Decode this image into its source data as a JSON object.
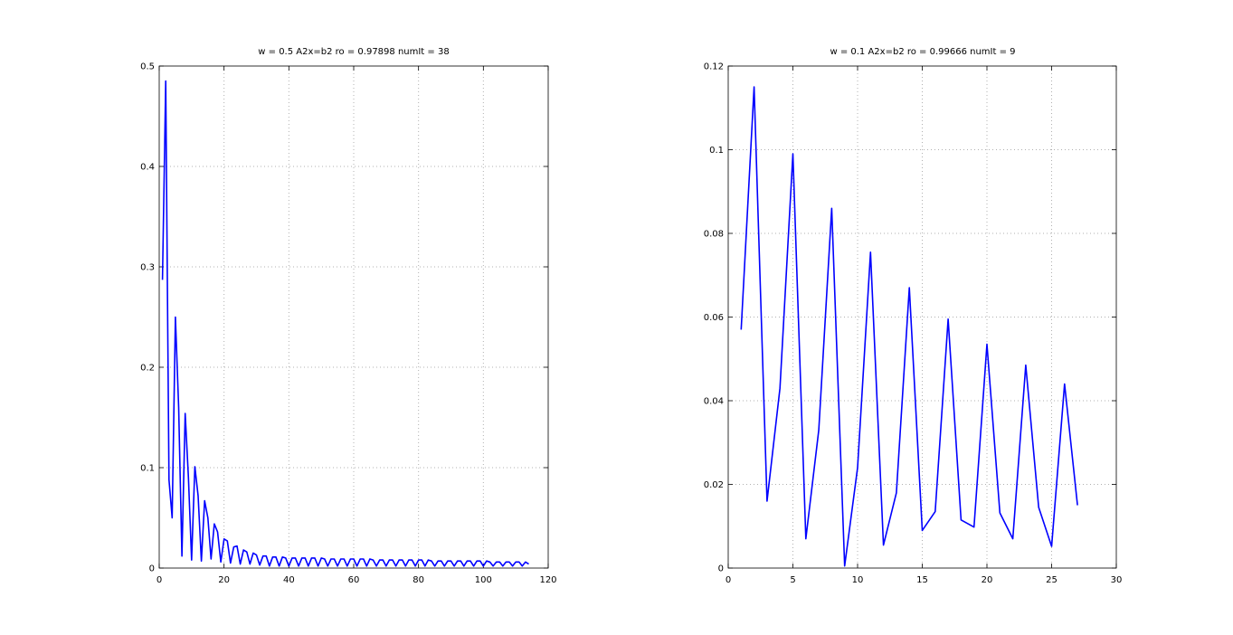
{
  "chart_data": [
    {
      "type": "line",
      "title": "w = 0.5   A2x=b2   ro = 0.97898   numIt = 38",
      "xlabel": "",
      "ylabel": "",
      "xlim": [
        0,
        120
      ],
      "ylim": [
        0,
        0.5
      ],
      "xticks": [
        0,
        20,
        40,
        60,
        80,
        100,
        120
      ],
      "yticks": [
        0,
        0.1,
        0.2,
        0.3,
        0.4,
        0.5
      ],
      "xtick_labels": [
        "0",
        "20",
        "40",
        "60",
        "80",
        "100",
        "120"
      ],
      "ytick_labels": [
        "0",
        "0.1",
        "0.2",
        "0.3",
        "0.4",
        "0.5"
      ],
      "grid": true,
      "line_color": "#0000ff",
      "x": [
        1,
        2,
        3,
        4,
        5,
        6,
        7,
        8,
        9,
        10,
        11,
        12,
        13,
        14,
        15,
        16,
        17,
        18,
        19,
        20,
        21,
        22,
        23,
        24,
        25,
        26,
        27,
        28,
        29,
        30,
        31,
        32,
        33,
        34,
        35,
        36,
        37,
        38,
        39,
        40,
        41,
        42,
        43,
        44,
        45,
        46,
        47,
        48,
        49,
        50,
        51,
        52,
        53,
        54,
        55,
        56,
        57,
        58,
        59,
        60,
        61,
        62,
        63,
        64,
        65,
        66,
        67,
        68,
        69,
        70,
        71,
        72,
        73,
        74,
        75,
        76,
        77,
        78,
        79,
        80,
        81,
        82,
        83,
        84,
        85,
        86,
        87,
        88,
        89,
        90,
        91,
        92,
        93,
        94,
        95,
        96,
        97,
        98,
        99,
        100,
        101,
        102,
        103,
        104,
        105,
        106,
        107,
        108,
        109,
        110,
        111,
        112,
        113,
        114
      ],
      "values": [
        0.287,
        0.485,
        0.088,
        0.05,
        0.25,
        0.16,
        0.012,
        0.154,
        0.09,
        0.008,
        0.101,
        0.072,
        0.007,
        0.067,
        0.05,
        0.009,
        0.044,
        0.036,
        0.006,
        0.029,
        0.027,
        0.005,
        0.021,
        0.022,
        0.004,
        0.018,
        0.016,
        0.004,
        0.015,
        0.013,
        0.003,
        0.012,
        0.012,
        0.002,
        0.011,
        0.011,
        0.002,
        0.011,
        0.01,
        0.002,
        0.01,
        0.01,
        0.002,
        0.01,
        0.01,
        0.002,
        0.01,
        0.01,
        0.002,
        0.01,
        0.009,
        0.002,
        0.009,
        0.009,
        0.002,
        0.009,
        0.009,
        0.002,
        0.009,
        0.009,
        0.002,
        0.009,
        0.009,
        0.002,
        0.009,
        0.008,
        0.002,
        0.008,
        0.008,
        0.002,
        0.008,
        0.008,
        0.002,
        0.008,
        0.008,
        0.002,
        0.008,
        0.008,
        0.002,
        0.008,
        0.008,
        0.002,
        0.008,
        0.007,
        0.002,
        0.007,
        0.007,
        0.002,
        0.007,
        0.007,
        0.002,
        0.007,
        0.007,
        0.002,
        0.007,
        0.007,
        0.002,
        0.007,
        0.007,
        0.002,
        0.007,
        0.006,
        0.002,
        0.006,
        0.006,
        0.002,
        0.006,
        0.006,
        0.002,
        0.006,
        0.006,
        0.002,
        0.006,
        0.004
      ]
    },
    {
      "type": "line",
      "title": "w = 0.1   A2x=b2   ro = 0.99666   numIt = 9",
      "xlabel": "",
      "ylabel": "",
      "xlim": [
        0,
        30
      ],
      "ylim": [
        0,
        0.12
      ],
      "xticks": [
        0,
        5,
        10,
        15,
        20,
        25,
        30
      ],
      "yticks": [
        0,
        0.02,
        0.04,
        0.06,
        0.08,
        0.1,
        0.12
      ],
      "xtick_labels": [
        "0",
        "5",
        "10",
        "15",
        "20",
        "25",
        "30"
      ],
      "ytick_labels": [
        "0",
        "0.02",
        "0.04",
        "0.06",
        "0.08",
        "0.1",
        "0.12"
      ],
      "grid": true,
      "line_color": "#0000ff",
      "x": [
        1,
        2,
        3,
        4,
        5,
        6,
        7,
        8,
        9,
        10,
        11,
        12,
        13,
        14,
        15,
        16,
        17,
        18,
        19,
        20,
        21,
        22,
        23,
        24,
        25,
        26,
        27
      ],
      "values": [
        0.057,
        0.115,
        0.016,
        0.043,
        0.099,
        0.007,
        0.033,
        0.086,
        0.0005,
        0.024,
        0.0755,
        0.0055,
        0.018,
        0.067,
        0.009,
        0.0135,
        0.0595,
        0.0115,
        0.0098,
        0.0535,
        0.0132,
        0.007,
        0.0485,
        0.0145,
        0.0052,
        0.044,
        0.015
      ]
    }
  ]
}
